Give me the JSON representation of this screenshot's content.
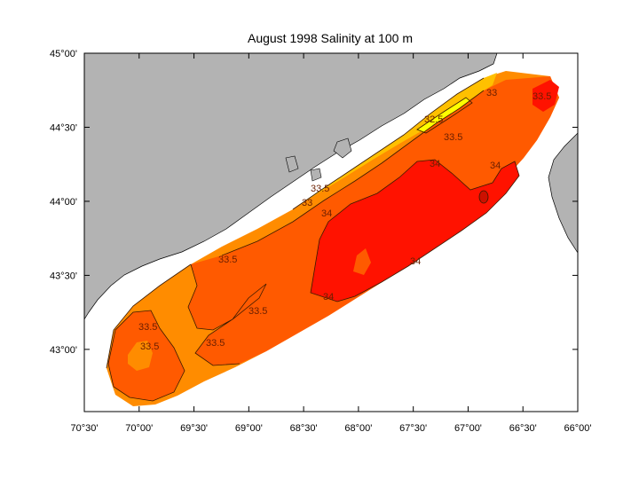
{
  "title": "August 1998  Salinity at 100 m",
  "axes": {
    "x_ticks": [
      "70°30'",
      "70°00'",
      "69°30'",
      "69°00'",
      "68°30'",
      "68°00'",
      "67°30'",
      "67°00'",
      "66°30'",
      "66°00'"
    ],
    "y_ticks": [
      "45°00'",
      "44°30'",
      "44°00'",
      "43°30'",
      "43°00'"
    ],
    "x_range_deg_west": [
      70.5,
      66.0
    ],
    "y_range_deg_north": [
      42.58,
      45.0
    ]
  },
  "contour_labels": [
    "32.5",
    "33",
    "33",
    "33.5",
    "33.5",
    "33.5",
    "33.5",
    "33.5",
    "33.5",
    "33.5",
    "33.5",
    "34",
    "34",
    "34",
    "34",
    "34"
  ],
  "colors": {
    "land": "#b3b3b3",
    "salinity_lt_32_5": "#ffff00",
    "salinity_32_5_33": "#ffc000",
    "salinity_33_33_5": "#ff8c00",
    "salinity_33_5_34": "#ff5a00",
    "salinity_gt_34": "#ff1200",
    "salinity_peak": "#cc1000"
  }
}
